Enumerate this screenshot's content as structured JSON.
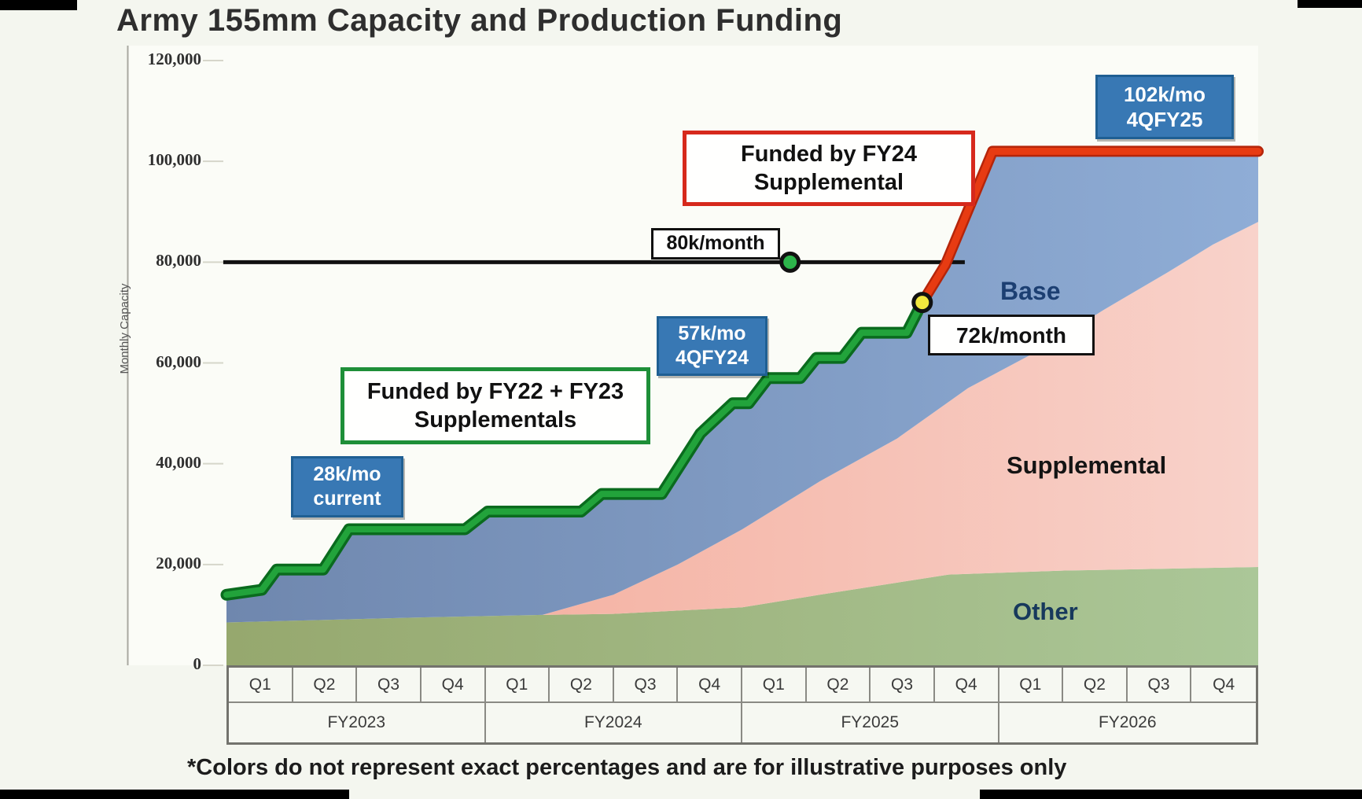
{
  "title": "Army 155mm Capacity and Production Funding",
  "footnote": "*Colors do not represent exact percentages and are for illustrative purposes only",
  "y_axis": {
    "label": "Monthly Capacity",
    "tick_values": [
      0,
      20000,
      40000,
      60000,
      80000,
      100000,
      120000
    ],
    "tick_labels": [
      "0",
      "20,000",
      "40,000",
      "60,000",
      "80,000",
      "100,000",
      "120,000"
    ]
  },
  "x_axis": {
    "quarter_labels": [
      "Q1",
      "Q2",
      "Q3",
      "Q4",
      "Q1",
      "Q2",
      "Q3",
      "Q4",
      "Q1",
      "Q2",
      "Q3",
      "Q4",
      "Q1",
      "Q2",
      "Q3",
      "Q4"
    ],
    "year_labels": [
      "FY2023",
      "FY2024",
      "FY2025",
      "FY2026"
    ]
  },
  "annotations": {
    "current_rate": {
      "line1": "28k/mo",
      "line2": "current"
    },
    "rate_4qfy24": {
      "line1": "57k/mo",
      "line2": "4QFY24"
    },
    "rate_4qfy25": {
      "line1": "102k/mo",
      "line2": "4QFY25"
    },
    "funded_fy24": {
      "line1": "Funded by FY24",
      "line2": "Supplemental"
    },
    "funded_fy22_fy23": {
      "line1": "Funded by FY22 + FY23",
      "line2": "Supplementals"
    },
    "ref_80k": "80k/month",
    "point_72k": "72k/month"
  },
  "area_labels": {
    "base": "Base",
    "supplemental": "Supplemental",
    "other": "Other"
  },
  "chart_data": {
    "type": "area",
    "title": "Army 155mm Capacity and Production Funding",
    "ylabel": "Monthly Capacity",
    "ylim": [
      0,
      120000
    ],
    "y_tick_step": 20000,
    "x_unit": "fiscal quarters, FY2023 Q1 (q=0) through FY2026 Q4 (q=16)",
    "grid": false,
    "legend": "labels drawn inside stacked areas (Base, Supplemental, Other)",
    "stack_order_bottom_to_top": [
      "Other",
      "Supplemental",
      "Base"
    ],
    "capacity_green_points": [
      [
        0,
        14000
      ],
      [
        0.55,
        15000
      ],
      [
        0.78,
        19000
      ],
      [
        1.5,
        19000
      ],
      [
        1.9,
        27000
      ],
      [
        3.7,
        27000
      ],
      [
        4.05,
        30500
      ],
      [
        5.5,
        30500
      ],
      [
        5.82,
        34000
      ],
      [
        6.75,
        34000
      ],
      [
        7.35,
        46000
      ],
      [
        7.85,
        52000
      ],
      [
        8.1,
        52000
      ],
      [
        8.4,
        57000
      ],
      [
        8.9,
        57000
      ],
      [
        9.15,
        61000
      ],
      [
        9.55,
        61000
      ],
      [
        9.85,
        66000
      ],
      [
        10.55,
        66000
      ],
      [
        10.79,
        72000
      ]
    ],
    "capacity_red_points": [
      [
        10.79,
        72000
      ],
      [
        11.15,
        79500
      ],
      [
        11.88,
        102000
      ],
      [
        16,
        102000
      ]
    ],
    "other_top_points": [
      [
        0,
        8500
      ],
      [
        3,
        9500
      ],
      [
        4.9,
        10000
      ],
      [
        6,
        10200
      ],
      [
        8,
        11500
      ],
      [
        9.2,
        14000
      ],
      [
        11.2,
        18000
      ],
      [
        13,
        18800
      ],
      [
        16,
        19500
      ]
    ],
    "supplemental_top_points": [
      [
        0,
        8500
      ],
      [
        3,
        9500
      ],
      [
        4.9,
        10000
      ],
      [
        6,
        14000
      ],
      [
        7,
        20000
      ],
      [
        8,
        27000
      ],
      [
        9.2,
        36500
      ],
      [
        10.4,
        45000
      ],
      [
        11.5,
        55000
      ],
      [
        12.6,
        62500
      ],
      [
        13.6,
        70500
      ],
      [
        14.6,
        78000
      ],
      [
        15.3,
        83500
      ],
      [
        16,
        88000
      ]
    ],
    "reference_line_80k": {
      "value": 80000,
      "q_start": -0.05,
      "q_end": 11.45
    },
    "markers": {
      "green_dot": {
        "q": 8.74,
        "value": 80000
      },
      "yellow_dot": {
        "q": 10.79,
        "value": 72000
      }
    },
    "annotated_rates": [
      {
        "label": "28k/mo current",
        "value": 28000
      },
      {
        "label": "57k/mo 4QFY24",
        "value": 57000
      },
      {
        "label": "72k/month",
        "value": 72000
      },
      {
        "label": "80k/month",
        "value": 80000
      },
      {
        "label": "102k/mo 4QFY25",
        "value": 102000
      }
    ],
    "colors": {
      "base_area": "#8fadd6",
      "base_area_left": "#6f87ae",
      "supplemental_area": "#f6c4bb",
      "supplemental_area_left": "#f3a694",
      "supplemental_area_right": "#f8d2ca",
      "other_area_left": "#96a86e",
      "other_area_right": "#abc798",
      "green_line": "#22a33b",
      "green_line_edge": "#0a6b1e",
      "red_line": "#e73b12",
      "red_line_edge": "#b5250a",
      "reference_line": "#111111",
      "green_dot": "#2db54b",
      "yellow_dot": "#f2e73e",
      "annotation_box_blue": "#3878b4",
      "annotation_box_blue_border": "#1f5f93",
      "funded_fy24_border": "#d6291c",
      "funded_fy22_fy23_border": "#1e8f38"
    }
  }
}
